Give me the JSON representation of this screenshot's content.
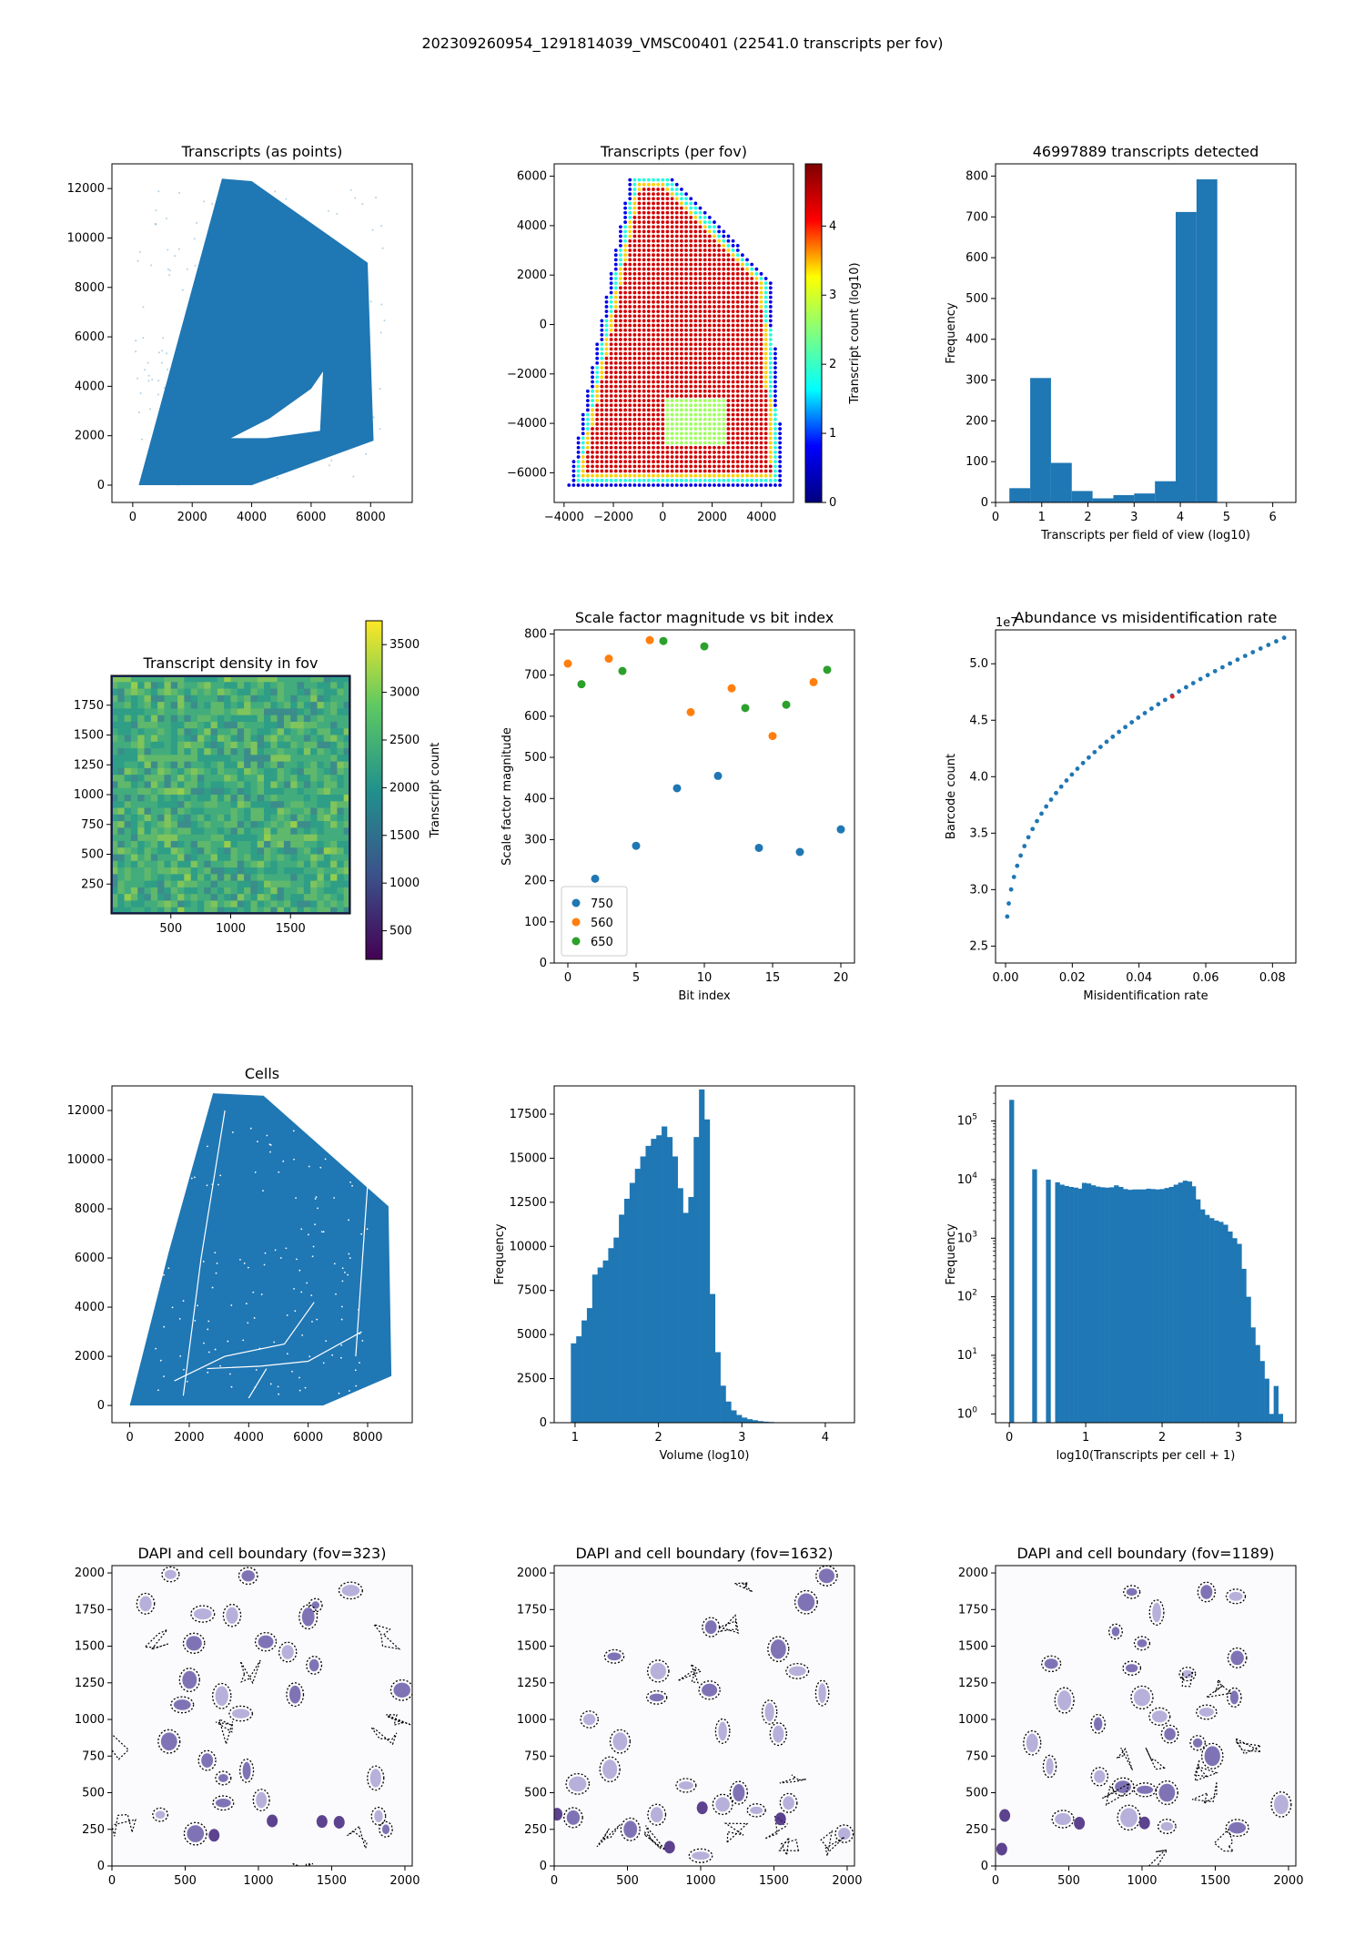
{
  "suptitle": "202309260954_1291814039_VMSC00401 (22541.0 transcripts per fov)",
  "colors": {
    "blue": "#1f77b4",
    "orange": "#ff7f0e",
    "green": "#2ca02c",
    "red": "#d62728",
    "frame": "#000000",
    "dapi": "#4b2e83"
  },
  "chart_data": [
    {
      "id": "p1",
      "type": "scatter",
      "title": "Transcripts (as points)",
      "xlabel": "",
      "ylabel": "",
      "xlim": [
        -700,
        9400
      ],
      "ylim": [
        -700,
        13000
      ],
      "xticks": [
        0,
        2000,
        4000,
        6000,
        8000
      ],
      "yticks": [
        0,
        2000,
        4000,
        6000,
        8000,
        10000,
        12000
      ],
      "region": [
        [
          200,
          0
        ],
        [
          3000,
          12400
        ],
        [
          4000,
          12300
        ],
        [
          7900,
          9000
        ],
        [
          8100,
          1800
        ],
        [
          4000,
          0
        ],
        [
          200,
          0
        ]
      ]
    },
    {
      "id": "p2",
      "type": "scatter",
      "title": "Transcripts (per fov)",
      "xlabel": "",
      "ylabel": "",
      "xlim": [
        -4400,
        5300
      ],
      "ylim": [
        -7200,
        6500
      ],
      "xticks": [
        -4000,
        -2000,
        0,
        2000,
        4000
      ],
      "yticks": [
        -6000,
        -4000,
        -2000,
        0,
        2000,
        4000,
        6000
      ],
      "colorbar": {
        "label": "Transcript count (log10)",
        "ticks": [
          0,
          1,
          2,
          3,
          4
        ],
        "range": [
          0,
          4.9
        ],
        "colormap": "jet"
      },
      "region": [
        [
          -3800,
          -6500
        ],
        [
          -1300,
          6000
        ],
        [
          300,
          6000
        ],
        [
          4400,
          1800
        ],
        [
          4900,
          -6500
        ]
      ]
    },
    {
      "id": "p3",
      "type": "bar",
      "title": "46997889 transcripts detected",
      "xlabel": "Transcripts per field of view (log10)",
      "ylabel": "Frequency",
      "xlim": [
        0,
        6.5
      ],
      "ylim": [
        0,
        830
      ],
      "xticks": [
        0,
        1,
        2,
        3,
        4,
        5,
        6
      ],
      "yticks": [
        0,
        100,
        200,
        300,
        400,
        500,
        600,
        700,
        800
      ],
      "bin_edges": [
        0.3,
        0.75,
        1.2,
        1.65,
        2.1,
        2.55,
        3.0,
        3.45,
        3.9,
        4.35,
        4.8,
        5.25,
        5.7,
        6.15
      ],
      "values": [
        35,
        305,
        97,
        28,
        10,
        18,
        22,
        52,
        712,
        792,
        0,
        0,
        0
      ]
    },
    {
      "id": "p4",
      "type": "heatmap",
      "title": "Transcript density in fov",
      "xlabel": "",
      "ylabel": "",
      "xlim": [
        0,
        2000
      ],
      "ylim": [
        0,
        2000
      ],
      "xticks": [
        500,
        1000,
        1500
      ],
      "yticks": [
        250,
        500,
        750,
        1000,
        1250,
        1500,
        1750
      ],
      "colorbar": {
        "label": "Transcript count",
        "ticks": [
          500,
          1000,
          1500,
          2000,
          2500,
          3000,
          3500
        ],
        "range": [
          200,
          3750
        ],
        "colormap": "viridis"
      }
    },
    {
      "id": "p5",
      "type": "scatter",
      "title": "Scale factor magnitude vs bit index",
      "xlabel": "Bit index",
      "ylabel": "Scale factor magnitude",
      "xlim": [
        -1,
        21
      ],
      "ylim": [
        0,
        810
      ],
      "xticks": [
        0,
        5,
        10,
        15,
        20
      ],
      "yticks": [
        0,
        100,
        200,
        300,
        400,
        500,
        600,
        700,
        800
      ],
      "legend_position": "lower-left",
      "series": [
        {
          "name": "750",
          "color": "#1f77b4",
          "points": [
            [
              2,
              205
            ],
            [
              5,
              285
            ],
            [
              8,
              425
            ],
            [
              11,
              455
            ],
            [
              14,
              280
            ],
            [
              17,
              270
            ],
            [
              20,
              325
            ]
          ]
        },
        {
          "name": "560",
          "color": "#ff7f0e",
          "points": [
            [
              0,
              728
            ],
            [
              3,
              740
            ],
            [
              6,
              785
            ],
            [
              9,
              610
            ],
            [
              12,
              668
            ],
            [
              15,
              552
            ],
            [
              18,
              683
            ]
          ]
        },
        {
          "name": "650",
          "color": "#2ca02c",
          "points": [
            [
              1,
              678
            ],
            [
              4,
              710
            ],
            [
              7,
              783
            ],
            [
              10,
              770
            ],
            [
              13,
              620
            ],
            [
              16,
              628
            ],
            [
              19,
              713
            ]
          ]
        }
      ]
    },
    {
      "id": "p6",
      "type": "scatter",
      "title": "Abundance vs misidentification rate",
      "xlabel": "Misidentification rate",
      "ylabel": "Barcode count",
      "offset_text": "1e7",
      "xlim": [
        -0.003,
        0.087
      ],
      "ylim": [
        2.35,
        5.3
      ],
      "xticks": [
        0.0,
        0.02,
        0.04,
        0.06,
        0.08
      ],
      "xtick_labels": [
        "0.00",
        "0.02",
        "0.04",
        "0.06",
        "0.08"
      ],
      "yticks": [
        2.5,
        3.0,
        3.5,
        4.0,
        4.5,
        5.0
      ],
      "ytick_labels": [
        "2.5",
        "3.0",
        "3.5",
        "4.0",
        "4.5",
        "5.0"
      ],
      "highlight": [
        0.05,
        4.71
      ]
    },
    {
      "id": "p7",
      "type": "scatter",
      "title": "Cells",
      "xlabel": "",
      "ylabel": "",
      "xlim": [
        -600,
        9500
      ],
      "ylim": [
        -700,
        13000
      ],
      "xticks": [
        0,
        2000,
        4000,
        6000,
        8000
      ],
      "yticks": [
        0,
        2000,
        4000,
        6000,
        8000,
        10000,
        12000
      ],
      "region": [
        [
          0,
          0
        ],
        [
          1300,
          6200
        ],
        [
          2800,
          12700
        ],
        [
          4500,
          12600
        ],
        [
          8700,
          8100
        ],
        [
          8800,
          1200
        ],
        [
          6500,
          0
        ],
        [
          0,
          0
        ]
      ]
    },
    {
      "id": "p8",
      "type": "bar",
      "title": "",
      "xlabel": "Volume (log10)",
      "ylabel": "Frequency",
      "xlim": [
        0.75,
        4.35
      ],
      "ylim": [
        0,
        19100
      ],
      "xticks": [
        1,
        2,
        3,
        4
      ],
      "yticks": [
        0,
        2500,
        5000,
        7500,
        10000,
        12500,
        15000,
        17500
      ],
      "bin_start": 0.95,
      "bin_width": 0.064,
      "values": [
        4500,
        4900,
        5800,
        6500,
        8400,
        8800,
        9200,
        9900,
        10500,
        11800,
        12700,
        13600,
        14400,
        15100,
        15700,
        16100,
        16300,
        16800,
        16200,
        15100,
        13300,
        11900,
        12800,
        16200,
        18900,
        17200,
        7300,
        4000,
        2100,
        1200,
        700,
        440,
        290,
        200,
        140,
        90,
        60,
        40,
        25,
        15
      ]
    },
    {
      "id": "p9",
      "type": "bar",
      "title": "",
      "xlabel": "log10(Transcripts per cell + 1)",
      "ylabel": "Frequency",
      "scale_y": "log",
      "xlim": [
        -0.18,
        3.75
      ],
      "ylim_log10": [
        -0.15,
        5.6
      ],
      "xticks": [
        0,
        1,
        2,
        3
      ],
      "yticks_log10": [
        0,
        1,
        2,
        3,
        4,
        5
      ],
      "bin_width": 0.0596,
      "bars": [
        [
          0,
          230000
        ],
        [
          0.3,
          15000
        ],
        [
          0.48,
          10000
        ],
        [
          0.6,
          9000
        ],
        [
          0.66,
          8200
        ],
        [
          0.72,
          7800
        ],
        [
          0.78,
          7500
        ],
        [
          0.84,
          7300
        ],
        [
          0.9,
          7000
        ],
        [
          0.95,
          8800
        ],
        [
          1.01,
          8600
        ],
        [
          1.07,
          8000
        ],
        [
          1.13,
          7600
        ],
        [
          1.19,
          7400
        ],
        [
          1.25,
          7300
        ],
        [
          1.31,
          7400
        ],
        [
          1.37,
          8000
        ],
        [
          1.43,
          7500
        ],
        [
          1.49,
          6900
        ],
        [
          1.55,
          6700
        ],
        [
          1.61,
          6800
        ],
        [
          1.67,
          6800
        ],
        [
          1.73,
          6800
        ],
        [
          1.79,
          7000
        ],
        [
          1.85,
          6900
        ],
        [
          1.91,
          6800
        ],
        [
          1.97,
          6900
        ],
        [
          2.03,
          7200
        ],
        [
          2.09,
          7500
        ],
        [
          2.15,
          8200
        ],
        [
          2.21,
          8900
        ],
        [
          2.27,
          9600
        ],
        [
          2.33,
          9300
        ],
        [
          2.38,
          7700
        ],
        [
          2.44,
          4600
        ],
        [
          2.5,
          3100
        ],
        [
          2.56,
          2500
        ],
        [
          2.62,
          2200
        ],
        [
          2.68,
          2000
        ],
        [
          2.74,
          1900
        ],
        [
          2.8,
          1700
        ],
        [
          2.86,
          1300
        ],
        [
          2.92,
          1000
        ],
        [
          2.98,
          800
        ],
        [
          3.04,
          300
        ],
        [
          3.1,
          100
        ],
        [
          3.16,
          30
        ],
        [
          3.22,
          15
        ],
        [
          3.28,
          8
        ],
        [
          3.34,
          4
        ],
        [
          3.4,
          1
        ],
        [
          3.46,
          3
        ],
        [
          3.52,
          1
        ]
      ]
    },
    {
      "id": "p10",
      "type": "scatter",
      "title": "DAPI and cell boundary (fov=323)",
      "xlabel": "",
      "ylabel": "",
      "xlim": [
        0,
        2050
      ],
      "ylim": [
        0,
        2050
      ],
      "xticks": [
        0,
        500,
        1000,
        1500,
        2000
      ],
      "yticks": [
        0,
        250,
        500,
        750,
        1000,
        1250,
        1500,
        1750,
        2000
      ],
      "cells": [
        [
          230,
          1790
        ],
        [
          400,
          1990
        ],
        [
          560,
          1520
        ],
        [
          620,
          1720
        ],
        [
          820,
          1710
        ],
        [
          930,
          1980
        ],
        [
          1050,
          1530
        ],
        [
          1200,
          1460
        ],
        [
          1390,
          1780
        ],
        [
          1630,
          1880
        ],
        [
          530,
          1270
        ],
        [
          750,
          1160
        ],
        [
          880,
          1040
        ],
        [
          1250,
          1170
        ],
        [
          1380,
          1370
        ],
        [
          480,
          1100
        ],
        [
          390,
          850
        ],
        [
          650,
          720
        ],
        [
          920,
          650
        ],
        [
          760,
          600
        ],
        [
          1020,
          450
        ],
        [
          760,
          430
        ],
        [
          570,
          220
        ],
        [
          330,
          350
        ],
        [
          1820,
          340
        ],
        [
          1870,
          250
        ],
        [
          1800,
          600
        ],
        [
          1340,
          1700
        ],
        [
          1980,
          1200
        ]
      ]
    },
    {
      "id": "p11",
      "type": "scatter",
      "title": "DAPI and cell boundary (fov=1632)",
      "xlabel": "",
      "ylabel": "",
      "xlim": [
        0,
        2050
      ],
      "ylim": [
        0,
        2050
      ],
      "xticks": [
        0,
        500,
        1000,
        1500,
        2000
      ],
      "yticks": [
        0,
        250,
        500,
        750,
        1000,
        1250,
        1500,
        1750,
        2000
      ],
      "cells": [
        [
          1720,
          1800
        ],
        [
          1860,
          1980
        ],
        [
          410,
          1430
        ],
        [
          710,
          1330
        ],
        [
          1530,
          1480
        ],
        [
          1660,
          1330
        ],
        [
          450,
          850
        ],
        [
          240,
          1000
        ],
        [
          700,
          1150
        ],
        [
          1060,
          1200
        ],
        [
          1150,
          920
        ],
        [
          1470,
          1050
        ],
        [
          1530,
          900
        ],
        [
          1830,
          1180
        ],
        [
          380,
          660
        ],
        [
          900,
          550
        ],
        [
          1260,
          500
        ],
        [
          1600,
          430
        ],
        [
          160,
          560
        ],
        [
          130,
          330
        ],
        [
          520,
          250
        ],
        [
          700,
          350
        ],
        [
          1150,
          420
        ],
        [
          1380,
          380
        ],
        [
          1980,
          220
        ],
        [
          1000,
          70
        ],
        [
          1070,
          1630
        ]
      ]
    },
    {
      "id": "p12",
      "type": "scatter",
      "title": "DAPI and cell boundary (fov=1189)",
      "xlabel": "",
      "ylabel": "",
      "xlim": [
        0,
        2050
      ],
      "ylim": [
        0,
        2050
      ],
      "xticks": [
        0,
        500,
        1000,
        1500,
        2000
      ],
      "yticks": [
        0,
        250,
        500,
        750,
        1000,
        1250,
        1500,
        1750,
        2000
      ],
      "cells": [
        [
          930,
          1870
        ],
        [
          1100,
          1730
        ],
        [
          1440,
          1870
        ],
        [
          1640,
          1840
        ],
        [
          820,
          1600
        ],
        [
          1000,
          1520
        ],
        [
          380,
          1380
        ],
        [
          930,
          1350
        ],
        [
          1310,
          1310
        ],
        [
          1650,
          1420
        ],
        [
          470,
          1130
        ],
        [
          1000,
          1150
        ],
        [
          1120,
          1020
        ],
        [
          1440,
          1050
        ],
        [
          1630,
          1150
        ],
        [
          250,
          840
        ],
        [
          370,
          680
        ],
        [
          710,
          610
        ],
        [
          870,
          540
        ],
        [
          1020,
          520
        ],
        [
          1170,
          500
        ],
        [
          1380,
          840
        ],
        [
          1190,
          900
        ],
        [
          1480,
          750
        ],
        [
          460,
          320
        ],
        [
          910,
          330
        ],
        [
          1170,
          270
        ],
        [
          1650,
          260
        ],
        [
          1950,
          420
        ],
        [
          700,
          970
        ]
      ]
    }
  ]
}
